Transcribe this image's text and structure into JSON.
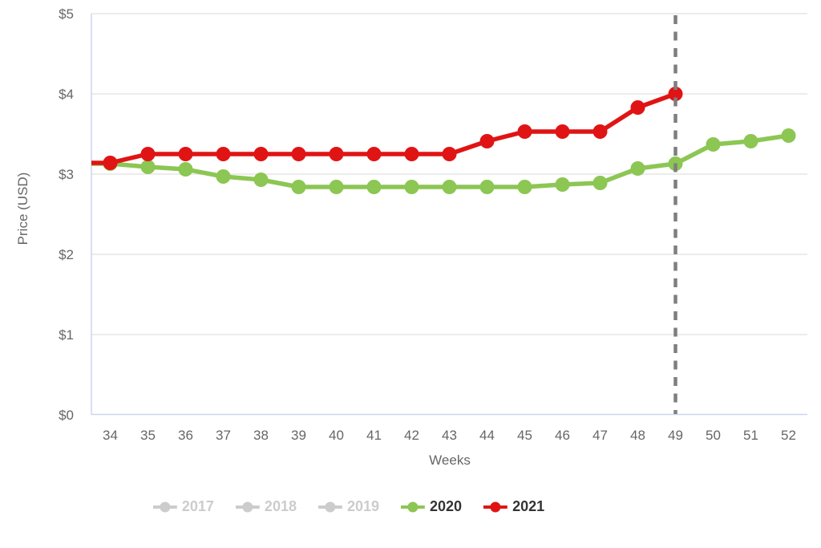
{
  "chart_data": {
    "type": "line",
    "title": "",
    "xlabel": "Weeks",
    "ylabel": "Price (USD)",
    "x_ticks": [
      34,
      35,
      36,
      37,
      38,
      39,
      40,
      41,
      42,
      43,
      44,
      45,
      46,
      47,
      48,
      49,
      50,
      51,
      52
    ],
    "y_ticks": [
      {
        "value": 0,
        "label": "$0"
      },
      {
        "value": 1,
        "label": "$1"
      },
      {
        "value": 2,
        "label": "$2"
      },
      {
        "value": 3,
        "label": "$3"
      },
      {
        "value": 4,
        "label": "$4"
      },
      {
        "value": 5,
        "label": "$5"
      }
    ],
    "ylim": [
      0,
      5
    ],
    "grid": "horizontal-only",
    "legend_position": "bottom",
    "series": [
      {
        "name": "2017",
        "enabled": false,
        "color": "#CCCCCC",
        "weeks": [],
        "values": []
      },
      {
        "name": "2018",
        "enabled": false,
        "color": "#CCCCCC",
        "weeks": [],
        "values": []
      },
      {
        "name": "2019",
        "enabled": false,
        "color": "#CCCCCC",
        "weeks": [],
        "values": []
      },
      {
        "name": "2020",
        "enabled": true,
        "color": "#8CC653",
        "weeks": [
          34,
          35,
          36,
          37,
          38,
          39,
          40,
          41,
          42,
          43,
          44,
          45,
          46,
          47,
          48,
          49,
          50,
          51,
          52
        ],
        "values": [
          3.13,
          3.09,
          3.06,
          2.97,
          2.93,
          2.84,
          2.84,
          2.84,
          2.84,
          2.84,
          2.84,
          2.84,
          2.87,
          2.89,
          3.07,
          3.13,
          3.37,
          3.41,
          3.48
        ]
      },
      {
        "name": "2021",
        "enabled": true,
        "color": "#E01414",
        "weeks": [
          34,
          35,
          36,
          37,
          38,
          39,
          40,
          41,
          42,
          43,
          44,
          45,
          46,
          47,
          48,
          49
        ],
        "values": [
          3.14,
          3.25,
          3.25,
          3.25,
          3.25,
          3.25,
          3.25,
          3.25,
          3.25,
          3.25,
          3.41,
          3.53,
          3.53,
          3.53,
          3.83,
          4.0
        ]
      }
    ],
    "annotation": {
      "type": "vertical-dashed-line",
      "week": 49,
      "color": "#7E7E7E"
    }
  },
  "colors": {
    "grid_line": "#E6E6E6",
    "axis_line": "#CCD6EB",
    "axis_label": "#666666",
    "legend_active_text": "#333333",
    "legend_disabled": "#CCCCCC",
    "background": "#FFFFFF"
  }
}
